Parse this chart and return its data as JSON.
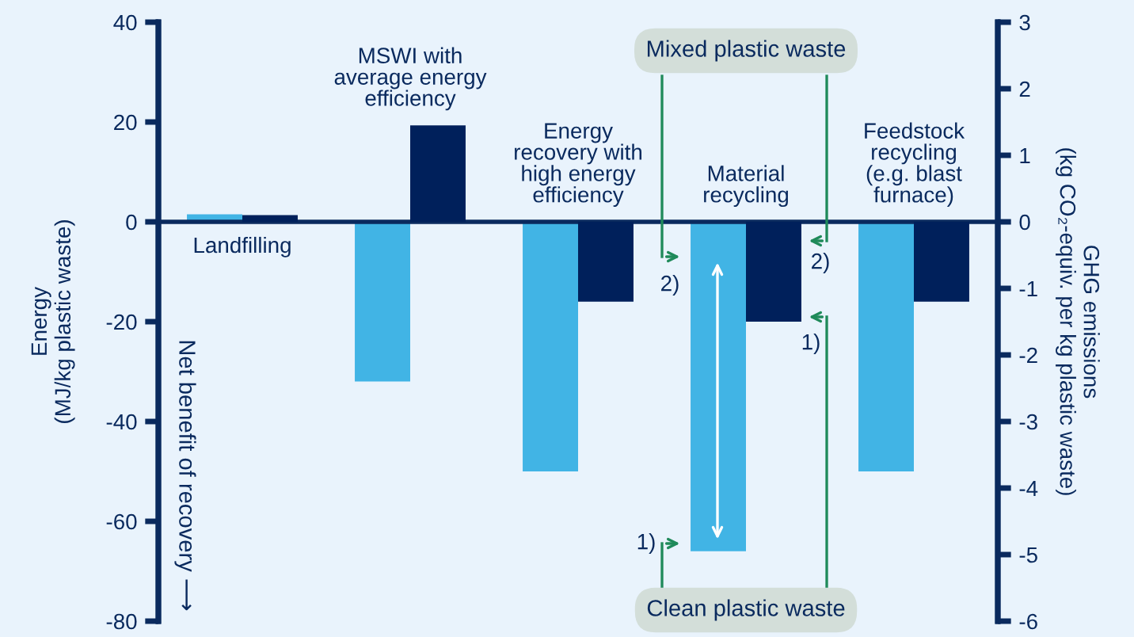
{
  "chart_data": {
    "type": "bar",
    "categories": [
      "Landfilling",
      "MSWI with average energy efficiency",
      "Energy recovery with high energy efficiency",
      "Material recycling",
      "Feedstock recycling (e.g. blast furnace)"
    ],
    "series": [
      {
        "color": "#41b4e5",
        "values": [
          1.5,
          -32,
          -50,
          -66,
          -50
        ]
      },
      {
        "color": "#00205b",
        "axis": "y2",
        "values": [
          0.1,
          1.45,
          -1.2,
          -1.5,
          -1.2
        ]
      }
    ],
    "ylabel": "Energy (MJ/kg plastic waste)",
    "y2label": "GHG emissions (kg CO₂-equiv. per kg plastic waste)",
    "ylim": [
      -80,
      40
    ],
    "yticks": [
      -80,
      -60,
      -40,
      -20,
      0,
      20,
      40
    ],
    "y2lim": [
      -6,
      3
    ],
    "y2ticks": [
      -6,
      -5,
      -4,
      -3,
      -2,
      -1,
      0,
      1,
      2,
      3
    ],
    "annotations": [
      "Mixed plastic waste",
      "Clean plastic waste",
      "Net benefit of recovery ⟶",
      "1)",
      "2)",
      "1)",
      "2)"
    ],
    "grid": false,
    "legend": false
  }
}
